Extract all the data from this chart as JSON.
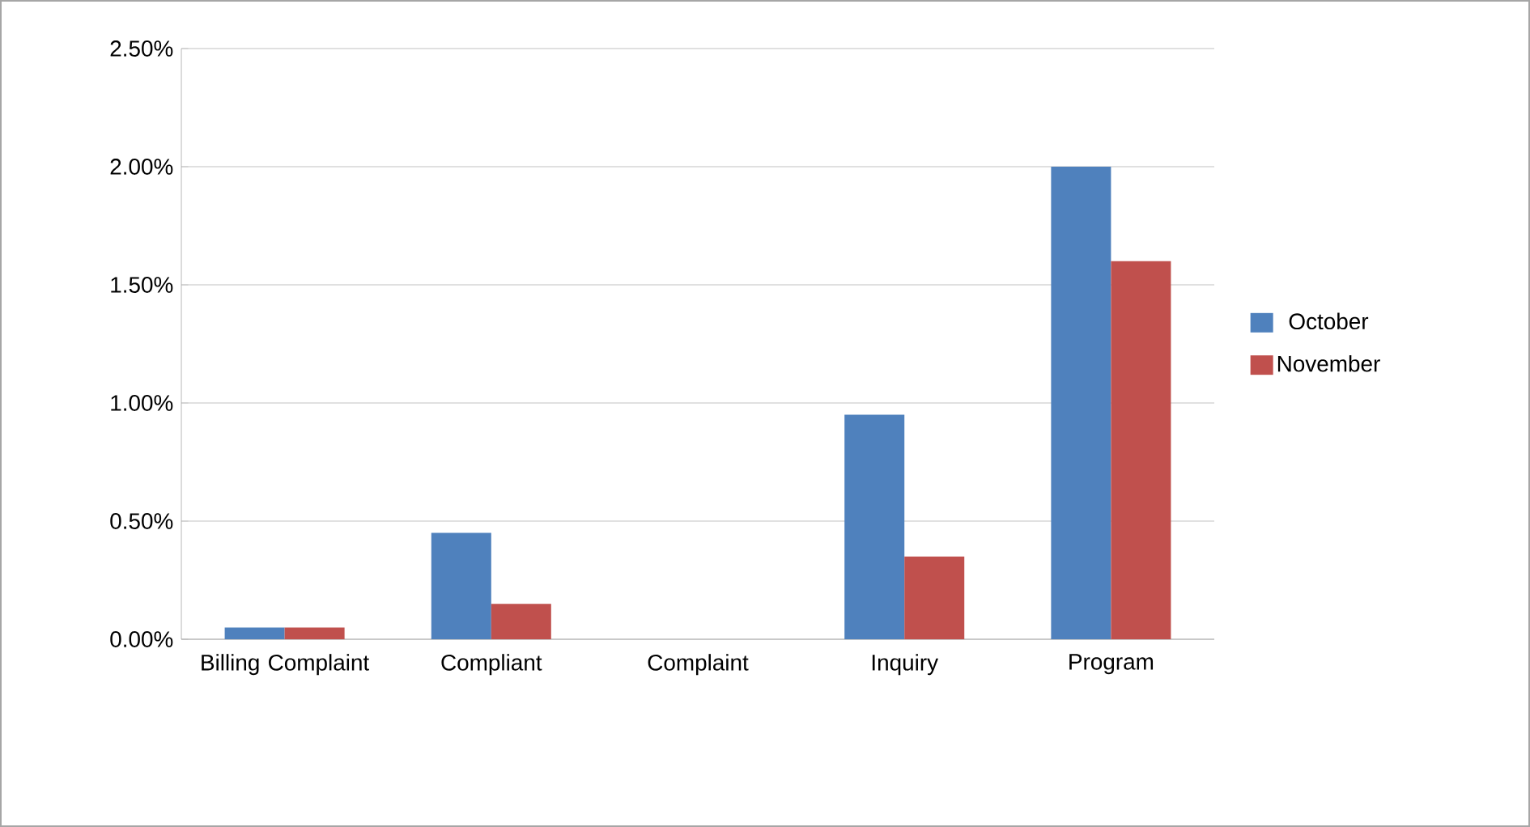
{
  "chart_data": {
    "type": "bar",
    "categories": [
      "Billing Complaint",
      "Compliant",
      "Complaint",
      "Inquiry",
      "Program"
    ],
    "series": [
      {
        "name": "October",
        "color": "#4f81bd",
        "values": [
          0.05,
          0.45,
          0,
          0.95,
          2.0
        ]
      },
      {
        "name": "November",
        "color": "#c0504d",
        "values": [
          0.05,
          0.15,
          0,
          0.35,
          1.6
        ]
      }
    ],
    "ylim": [
      0,
      2.5
    ],
    "yticks": [
      {
        "value": 0,
        "label": "0.00%"
      },
      {
        "value": 0.5,
        "label": "0.50%"
      },
      {
        "value": 1,
        "label": "1.00%"
      },
      {
        "value": 1.5,
        "label": "1.50%"
      },
      {
        "value": 2,
        "label": "2.00%"
      },
      {
        "value": 2.5,
        "label": "2.50%"
      }
    ],
    "grid": "y",
    "legend": "right"
  }
}
